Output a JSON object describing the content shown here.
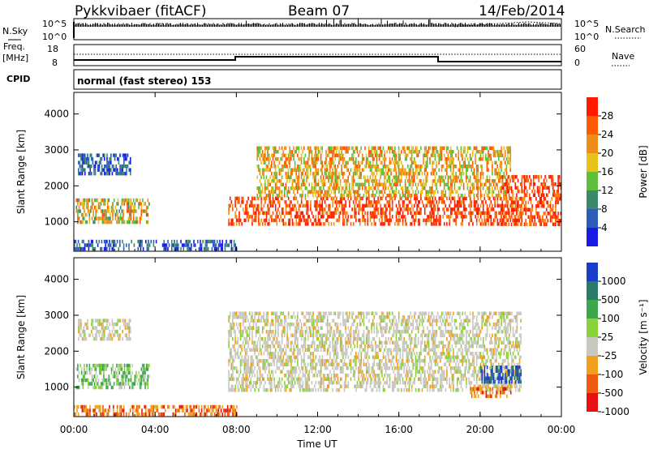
{
  "header": {
    "station": "Pykkvibaer (fitACF)",
    "beam": "Beam 07",
    "date": "14/Feb/2014"
  },
  "top_panels": {
    "nsky_label": "N.Sky",
    "nsky_ticks": [
      "10^5",
      "10^0"
    ],
    "nsky_right_ticks": [
      "10^5",
      "10^0"
    ],
    "nsearch_label": "N.Search",
    "freq_label": "Freq.",
    "freq_unit": "[MHz]",
    "freq_ticks": [
      "18",
      "8"
    ],
    "nave_ticks": [
      "60",
      "0"
    ],
    "nave_label": "Nave",
    "cpid_label": "CPID",
    "cpid_text": "normal (fast stereo) 153"
  },
  "chart_data": [
    {
      "type": "heatmap",
      "title": "",
      "xlabel": "",
      "ylabel": "Slant Range [km]",
      "x_ticks": [
        "00:00",
        "04:00",
        "08:00",
        "12:00",
        "16:00",
        "20:00",
        "00:00"
      ],
      "x_range_hours": [
        0,
        24
      ],
      "y_ticks": [
        1000,
        2000,
        3000,
        4000
      ],
      "ylim": [
        180,
        4600
      ],
      "colorbar": {
        "label": "Power [dB]",
        "ticks": [
          "4",
          "8",
          "12",
          "16",
          "20",
          "24",
          "28"
        ],
        "colors": [
          "#1a1ae6",
          "#2a5cb8",
          "#3a8a6a",
          "#5fbf3a",
          "#e8c21a",
          "#f08c1a",
          "#ff5a00",
          "#ff1a00"
        ]
      },
      "echo_regions": [
        {
          "t_start": 0.1,
          "t_end": 3.7,
          "r_start": 950,
          "r_end": 1650,
          "level": "medium-high"
        },
        {
          "t_start": 0.2,
          "t_end": 2.8,
          "r_start": 2300,
          "r_end": 2900,
          "level": "low"
        },
        {
          "t_start": 7.6,
          "t_end": 22.0,
          "r_start": 900,
          "r_end": 1700,
          "level": "high"
        },
        {
          "t_start": 9.0,
          "t_end": 21.5,
          "r_start": 1700,
          "r_end": 3100,
          "level": "medium"
        },
        {
          "t_start": 21.0,
          "t_end": 24.0,
          "r_start": 900,
          "r_end": 2300,
          "level": "high"
        },
        {
          "t_start": 0.0,
          "t_end": 8.0,
          "r_start": 200,
          "r_end": 500,
          "level": "low"
        }
      ]
    },
    {
      "type": "heatmap",
      "title": "",
      "xlabel": "Time UT",
      "ylabel": "Slant Range [km]",
      "x_ticks": [
        "00:00",
        "04:00",
        "08:00",
        "12:00",
        "16:00",
        "20:00",
        "00:00"
      ],
      "x_range_hours": [
        0,
        24
      ],
      "y_ticks": [
        1000,
        2000,
        3000,
        4000
      ],
      "ylim": [
        180,
        4600
      ],
      "colorbar": {
        "label": "Velocity [m s⁻¹]",
        "ticks": [
          "1000",
          "500",
          "100",
          "25",
          "-25",
          "-100",
          "-500",
          "-1000"
        ],
        "colors": [
          "#1a3cc8",
          "#2a7a6a",
          "#3ca84a",
          "#8ad23a",
          "#c8c8c0",
          "#f0a01a",
          "#f05a10",
          "#e81010"
        ]
      },
      "echo_regions": [
        {
          "t_start": 0.1,
          "t_end": 3.7,
          "r_start": 950,
          "r_end": 1650,
          "level": "green"
        },
        {
          "t_start": 0.2,
          "t_end": 2.8,
          "r_start": 2300,
          "r_end": 2900,
          "level": "grey"
        },
        {
          "t_start": 7.6,
          "t_end": 22.0,
          "r_start": 900,
          "r_end": 3100,
          "level": "grey"
        },
        {
          "t_start": 20.0,
          "t_end": 22.0,
          "r_start": 1100,
          "r_end": 1600,
          "level": "blue"
        },
        {
          "t_start": 19.5,
          "t_end": 21.5,
          "r_start": 700,
          "r_end": 1000,
          "level": "orange"
        },
        {
          "t_start": 0.0,
          "t_end": 8.0,
          "r_start": 200,
          "r_end": 500,
          "level": "orange"
        }
      ]
    }
  ]
}
